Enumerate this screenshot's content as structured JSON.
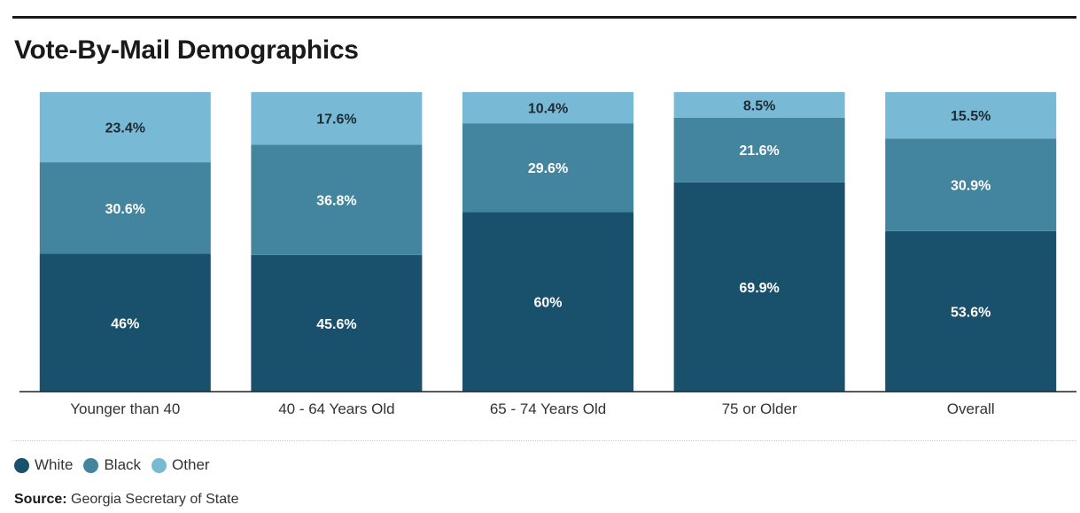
{
  "title": "Vote-By-Mail Demographics",
  "colors": {
    "White": "#19506b",
    "Black": "#43849f",
    "Other": "#78b9d6"
  },
  "chart_data": {
    "type": "bar",
    "stacked": true,
    "percent": true,
    "ylim": [
      0,
      100
    ],
    "categories": [
      "Younger than 40",
      "40 - 64 Years Old",
      "65 - 74 Years Old",
      "75 or Older",
      "Overall"
    ],
    "series": [
      {
        "name": "White",
        "values": [
          46,
          45.6,
          60,
          69.9,
          53.6
        ],
        "labels": [
          "46%",
          "45.6%",
          "60%",
          "69.9%",
          "53.6%"
        ]
      },
      {
        "name": "Black",
        "values": [
          30.6,
          36.8,
          29.6,
          21.6,
          30.9
        ],
        "labels": [
          "30.6%",
          "36.8%",
          "29.6%",
          "21.6%",
          "30.9%"
        ]
      },
      {
        "name": "Other",
        "values": [
          23.4,
          17.6,
          10.4,
          8.5,
          15.5
        ],
        "labels": [
          "23.4%",
          "17.6%",
          "10.4%",
          "8.5%",
          "15.5%"
        ]
      }
    ],
    "legend": "bottom-left",
    "grid": false
  },
  "legend": {
    "items": [
      {
        "name": "White",
        "label": "White"
      },
      {
        "name": "Black",
        "label": "Black"
      },
      {
        "name": "Other",
        "label": "Other"
      }
    ]
  },
  "source": {
    "prefix": "Source:",
    "text": "Georgia Secretary of State"
  }
}
